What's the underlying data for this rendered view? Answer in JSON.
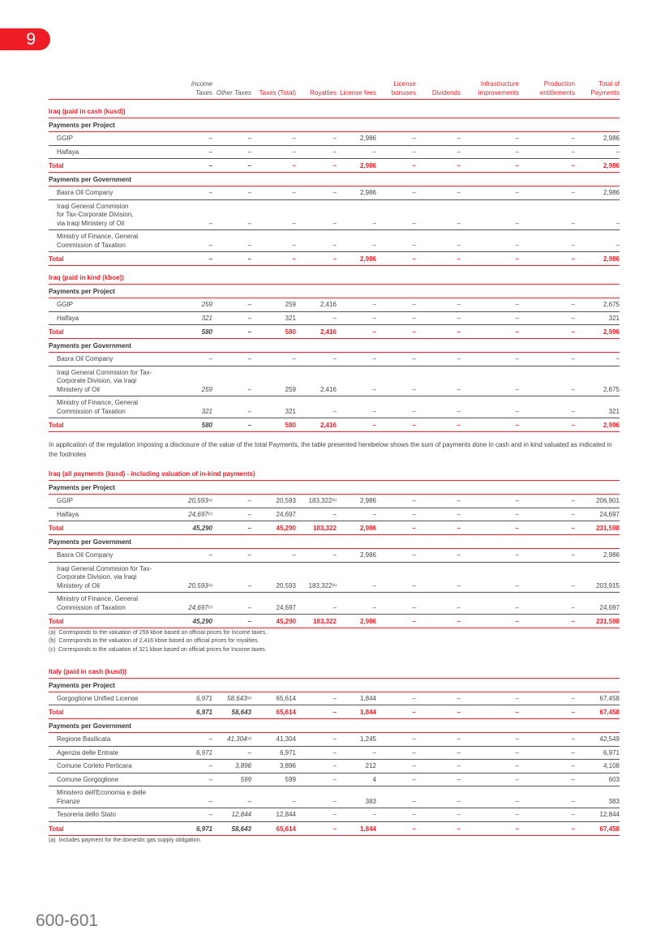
{
  "page_badge": "9",
  "footer_pages": "600-601",
  "columns": [
    "Income Taxes",
    "Other Taxes",
    "Taxes (Total)",
    "Royalties",
    "License fees",
    "License bonuses",
    "Dividends",
    "Infrastructure improvements",
    "Production entitlements",
    "Total of Payments"
  ],
  "total_label": "Total",
  "colors": {
    "accent": "#ee1c25"
  },
  "sections": [
    {
      "title": "Iraq (paid in cash (kusd))",
      "groups": [
        {
          "label": "Payments per Project",
          "rows": [
            {
              "label": "GGIP",
              "cells": [
                "–",
                "–",
                "–",
                "–",
                "2,986",
                "–",
                "–",
                "–",
                "–",
                "2,986"
              ]
            },
            {
              "label": "Halfaya",
              "cells": [
                "–",
                "–",
                "–",
                "–",
                "–",
                "–",
                "–",
                "–",
                "–",
                "–"
              ]
            }
          ],
          "total": [
            "–",
            "–",
            "–",
            "–",
            "2,986",
            "–",
            "–",
            "–",
            "–",
            "2,986"
          ]
        },
        {
          "label": "Payments per Government",
          "rows": [
            {
              "label": "Basra Oil Company",
              "cells": [
                "–",
                "–",
                "–",
                "–",
                "2,986",
                "–",
                "–",
                "–",
                "–",
                "2,986"
              ]
            },
            {
              "label": "Iraqi General Commision\n for Tax-Corporate Division,\nvia Iraqi Ministery of Oil",
              "cells": [
                "–",
                "–",
                "–",
                "–",
                "–",
                "–",
                "–",
                "–",
                "–",
                "–"
              ]
            },
            {
              "label": "Ministry of Finance, General\nCommission of Taxation",
              "cells": [
                "–",
                "–",
                "–",
                "–",
                "–",
                "–",
                "–",
                "–",
                "–",
                "–"
              ]
            }
          ],
          "total": [
            "–",
            "–",
            "–",
            "–",
            "2,986",
            "–",
            "–",
            "–",
            "–",
            "2,986"
          ]
        }
      ]
    },
    {
      "title": "Iraq (paid in kind (kboe))",
      "groups": [
        {
          "label": "Payments per Project",
          "rows": [
            {
              "label": "GGIP",
              "cells": [
                "259",
                "–",
                "259",
                "2,416",
                "–",
                "–",
                "–",
                "–",
                "–",
                "2,675"
              ]
            },
            {
              "label": "Halfaya",
              "cells": [
                "321",
                "–",
                "321",
                "–",
                "–",
                "–",
                "–",
                "–",
                "–",
                "321"
              ]
            }
          ],
          "total": [
            "580",
            "–",
            "580",
            "2,416",
            "–",
            "–",
            "–",
            "–",
            "–",
            "2,996"
          ]
        },
        {
          "label": "Payments per Government",
          "rows": [
            {
              "label": "Basra Oil Company",
              "cells": [
                "–",
                "–",
                "–",
                "–",
                "–",
                "–",
                "–",
                "–",
                "–",
                "–"
              ]
            },
            {
              "label": "Iraqi General Commision for Tax-\nCorporate Division, via Iraqi\nMinistery of Oil",
              "cells": [
                "259",
                "–",
                "259",
                "2,416",
                "–",
                "–",
                "–",
                "–",
                "–",
                "2,675"
              ]
            },
            {
              "label": "Ministry of Finance, General\nCommission of Taxation",
              "cells": [
                "321",
                "–",
                "321",
                "–",
                "–",
                "–",
                "–",
                "–",
                "–",
                "321"
              ]
            }
          ],
          "total": [
            "580",
            "–",
            "580",
            "2,416",
            "–",
            "–",
            "–",
            "–",
            "–",
            "2,996"
          ]
        }
      ],
      "paragraph": "In application of the regulation imposing a disclosure of the value of the total Payments, the table presented herebelow shows the sum of payments done in cash and in kind valuated as indicated in the footnotes"
    },
    {
      "title": "Iraq (all payments (kusd) - including valuation of in-kind payments)",
      "groups": [
        {
          "label": "Payments per Project",
          "rows": [
            {
              "label": "GGIP",
              "cells": [
                {
                  "v": "20,593",
                  "sup": "(a)"
                },
                "–",
                "20,593",
                {
                  "v": "183,322",
                  "sup": "(b)"
                },
                "2,986",
                "–",
                "–",
                "–",
                "–",
                "206,901"
              ]
            },
            {
              "label": "Halfaya",
              "cells": [
                {
                  "v": "24,697",
                  "sup": "(c)"
                },
                "–",
                "24,697",
                "–",
                "–",
                "–",
                "–",
                "–",
                "–",
                "24,697"
              ]
            }
          ],
          "total": [
            "45,290",
            "–",
            "45,290",
            "183,322",
            "2,986",
            "–",
            "–",
            "–",
            "–",
            "231,598"
          ]
        },
        {
          "label": "Payments per Government",
          "rows": [
            {
              "label": "Basra Oil Company",
              "cells": [
                "–",
                "–",
                "–",
                "–",
                "2,986",
                "–",
                "–",
                "–",
                "–",
                "2,986"
              ]
            },
            {
              "label": "Iraqi General Commision for Tax-\nCorporate Division, via Iraqi\nMinistery of Oil",
              "cells": [
                {
                  "v": "20,593",
                  "sup": "(a)"
                },
                "–",
                "20,593",
                {
                  "v": "183,322",
                  "sup": "(b)"
                },
                "–",
                "–",
                "–",
                "–",
                "–",
                "203,915"
              ]
            },
            {
              "label": "Ministry of Finance, General\nCommission of Taxation",
              "cells": [
                {
                  "v": "24,697",
                  "sup": "(c)"
                },
                "–",
                "24,697",
                "–",
                "–",
                "–",
                "–",
                "–",
                "–",
                "24,697"
              ]
            }
          ],
          "total": [
            "45,290",
            "–",
            "45,290",
            "183,322",
            "2,986",
            "–",
            "–",
            "–",
            "–",
            "231,598"
          ]
        }
      ],
      "footnotes": [
        "(a)  Corresponds to the valuation of 259 kboe based on official prices for Income taxes.",
        "(b)  Corresponds to the valuation of 2,416 kboe based on official prices for royalties.",
        "(c)  Corresponds to the valuation of 321 kboe based on official prices for Income taxes."
      ]
    },
    {
      "title": "Italy (paid in cash (kusd))",
      "groups": [
        {
          "label": "Payments per Project",
          "rows": [
            {
              "label": "Gorgoglione Unified License",
              "cells": [
                "6,971",
                {
                  "v": "58,643",
                  "sup": "(a)"
                },
                "65,614",
                "–",
                "1,844",
                "–",
                "–",
                "–",
                "–",
                "67,458"
              ]
            }
          ],
          "total": [
            "6,971",
            "58,643",
            "65,614",
            "–",
            "1,844",
            "–",
            "–",
            "–",
            "–",
            "67,458"
          ]
        },
        {
          "label": "Payments per Government",
          "rows": [
            {
              "label": "Regione Basilicata",
              "cells": [
                "–",
                {
                  "v": "41,304",
                  "sup": "(a)"
                },
                "41,304",
                "–",
                "1,245",
                "–",
                "–",
                "–",
                "–",
                "42,549"
              ]
            },
            {
              "label": "Agenzia delle Entrate",
              "cells": [
                "6,971",
                "–",
                "6,971",
                "–",
                "–",
                "–",
                "–",
                "–",
                "–",
                "6,971"
              ]
            },
            {
              "label": "Comune Corleto Perticara",
              "cells": [
                "–",
                "3,896",
                "3,896",
                "–",
                "212",
                "–",
                "–",
                "–",
                "–",
                "4,108"
              ]
            },
            {
              "label": "Comune Gorgoglione",
              "cells": [
                "–",
                "599",
                "599",
                "–",
                "4",
                "–",
                "–",
                "–",
                "–",
                "603"
              ]
            },
            {
              "label": "Ministero dell'Economia e delle\nFinanze",
              "cells": [
                "–",
                "–",
                "–",
                "–",
                "383",
                "–",
                "–",
                "–",
                "–",
                "383"
              ]
            },
            {
              "label": "Tesoreria dello Stato",
              "cells": [
                "–",
                "12,844",
                "12,844",
                "–",
                "–",
                "–",
                "–",
                "–",
                "–",
                "12,844"
              ]
            }
          ],
          "total": [
            "6,971",
            "58,643",
            "65,614",
            "–",
            "1,844",
            "–",
            "–",
            "–",
            "–",
            "67,458"
          ]
        }
      ],
      "footnotes": [
        "(a)  Includes payment for the domestic gas supply obligation."
      ]
    }
  ]
}
